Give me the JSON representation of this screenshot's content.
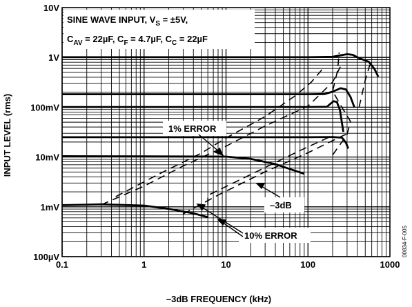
{
  "chart_data": {
    "type": "line",
    "title": "",
    "xlabel": "–3dB FREQUENCY (kHz)",
    "ylabel": "INPUT LEVEL (rms)",
    "xscale": "log",
    "yscale": "log",
    "xlim": [
      0.1,
      1000
    ],
    "ylim": [
      0.0001,
      10
    ],
    "grid": true,
    "x_ticks": [
      {
        "value": 0.1,
        "label": "0.1"
      },
      {
        "value": 1,
        "label": "1"
      },
      {
        "value": 10,
        "label": "10"
      },
      {
        "value": 100,
        "label": "100"
      },
      {
        "value": 1000,
        "label": "1000"
      }
    ],
    "y_ticks": [
      {
        "value": 10,
        "label": "10V"
      },
      {
        "value": 1,
        "label": "1V"
      },
      {
        "value": 0.1,
        "label": "100mV"
      },
      {
        "value": 0.01,
        "label": "10mV"
      },
      {
        "value": 0.001,
        "label": "1mV"
      },
      {
        "value": 0.0001,
        "label": "100µV"
      }
    ],
    "conditions": {
      "line1_a": "SINE WAVE INPUT, V",
      "line1_sub": "S",
      "line1_b": " = ±5V,",
      "line2_c1": "C",
      "line2_s1": "AV",
      "line2_v1": " = 22µF, C",
      "line2_s2": "F",
      "line2_v2": " = 4.7µF, C",
      "line2_s3": "C",
      "line2_v3": " = 22µF"
    },
    "annotations": {
      "err1": "1% ERROR",
      "err10": "10% ERROR",
      "db3": "–3dB"
    },
    "figure_id": "00834-F-005",
    "series": [
      {
        "values": [
          [
            0.1,
            0.00108
          ],
          [
            0.3,
            0.00112
          ],
          [
            1,
            0.00106
          ],
          [
            2,
            0.00091
          ],
          [
            4,
            0.00074
          ],
          [
            6,
            0.00062
          ]
        ]
      },
      {
        "values": [
          [
            0.1,
            0.0104
          ],
          [
            1,
            0.0103
          ],
          [
            10,
            0.0102
          ],
          [
            20,
            0.0092
          ],
          [
            40,
            0.0072
          ],
          [
            90,
            0.0046
          ]
        ]
      },
      {
        "values": [
          [
            0.1,
            0.025
          ],
          [
            10,
            0.025
          ],
          [
            100,
            0.025
          ],
          [
            200,
            0.0252
          ],
          [
            260,
            0.0245
          ],
          [
            290,
            0.0195
          ],
          [
            310,
            0.0148
          ]
        ]
      },
      {
        "values": [
          [
            0.1,
            0.101
          ],
          [
            10,
            0.101
          ],
          [
            100,
            0.101
          ],
          [
            170,
            0.102
          ],
          [
            205,
            0.132
          ],
          [
            225,
            0.128
          ],
          [
            245,
            0.089
          ],
          [
            260,
            0.048
          ],
          [
            270,
            0.032
          ]
        ]
      },
      {
        "values": [
          [
            0.1,
            0.182
          ],
          [
            10,
            0.182
          ],
          [
            100,
            0.182
          ],
          [
            160,
            0.184
          ],
          [
            200,
            0.205
          ],
          [
            250,
            0.24
          ],
          [
            290,
            0.228
          ],
          [
            330,
            0.162
          ],
          [
            370,
            0.098
          ]
        ]
      },
      {
        "values": [
          [
            0.1,
            1.01
          ],
          [
            10,
            1.01
          ],
          [
            100,
            1.01
          ],
          [
            200,
            1.03
          ],
          [
            300,
            1.16
          ],
          [
            350,
            1.13
          ],
          [
            420,
            0.97
          ],
          [
            550,
            0.82
          ],
          [
            650,
            0.58
          ],
          [
            720,
            0.41
          ]
        ]
      }
    ],
    "error_curves": [
      {
        "values": [
          [
            0.3,
            0.0011
          ],
          [
            1,
            0.0026
          ],
          [
            3,
            0.0066
          ],
          [
            10,
            0.0165
          ],
          [
            30,
            0.042
          ],
          [
            100,
            0.105
          ],
          [
            200,
            0.32
          ],
          [
            260,
            0.75
          ]
        ]
      },
      {
        "values": [
          [
            0.45,
            0.0016
          ],
          [
            1.5,
            0.0045
          ],
          [
            5,
            0.012
          ],
          [
            10,
            0.024
          ],
          [
            30,
            0.065
          ],
          [
            70,
            0.17
          ],
          [
            110,
            0.32
          ],
          [
            155,
            0.62
          ]
        ]
      },
      {
        "values": [
          [
            3,
            0.00072
          ],
          [
            8,
            0.00172
          ],
          [
            30,
            0.00505
          ],
          [
            100,
            0.0122
          ],
          [
            250,
            0.0255
          ],
          [
            320,
            0.0305
          ]
        ]
      },
      {
        "values": [
          [
            6,
            0.0006
          ],
          [
            6,
            0.0017
          ],
          [
            22,
            0.0048
          ],
          [
            80,
            0.0135
          ],
          [
            200,
            0.027
          ]
        ]
      },
      {
        "values": [
          [
            200,
            0.011
          ],
          [
            300,
            0.028
          ],
          [
            330,
            0.052
          ],
          [
            250,
            0.11
          ],
          [
            200,
            0.21
          ],
          [
            230,
            0.55
          ],
          [
            240,
            1.25
          ]
        ]
      },
      {
        "values": [
          [
            420,
            0.1
          ],
          [
            500,
            0.35
          ],
          [
            560,
            0.65
          ],
          [
            600,
            0.85
          ]
        ]
      }
    ]
  }
}
